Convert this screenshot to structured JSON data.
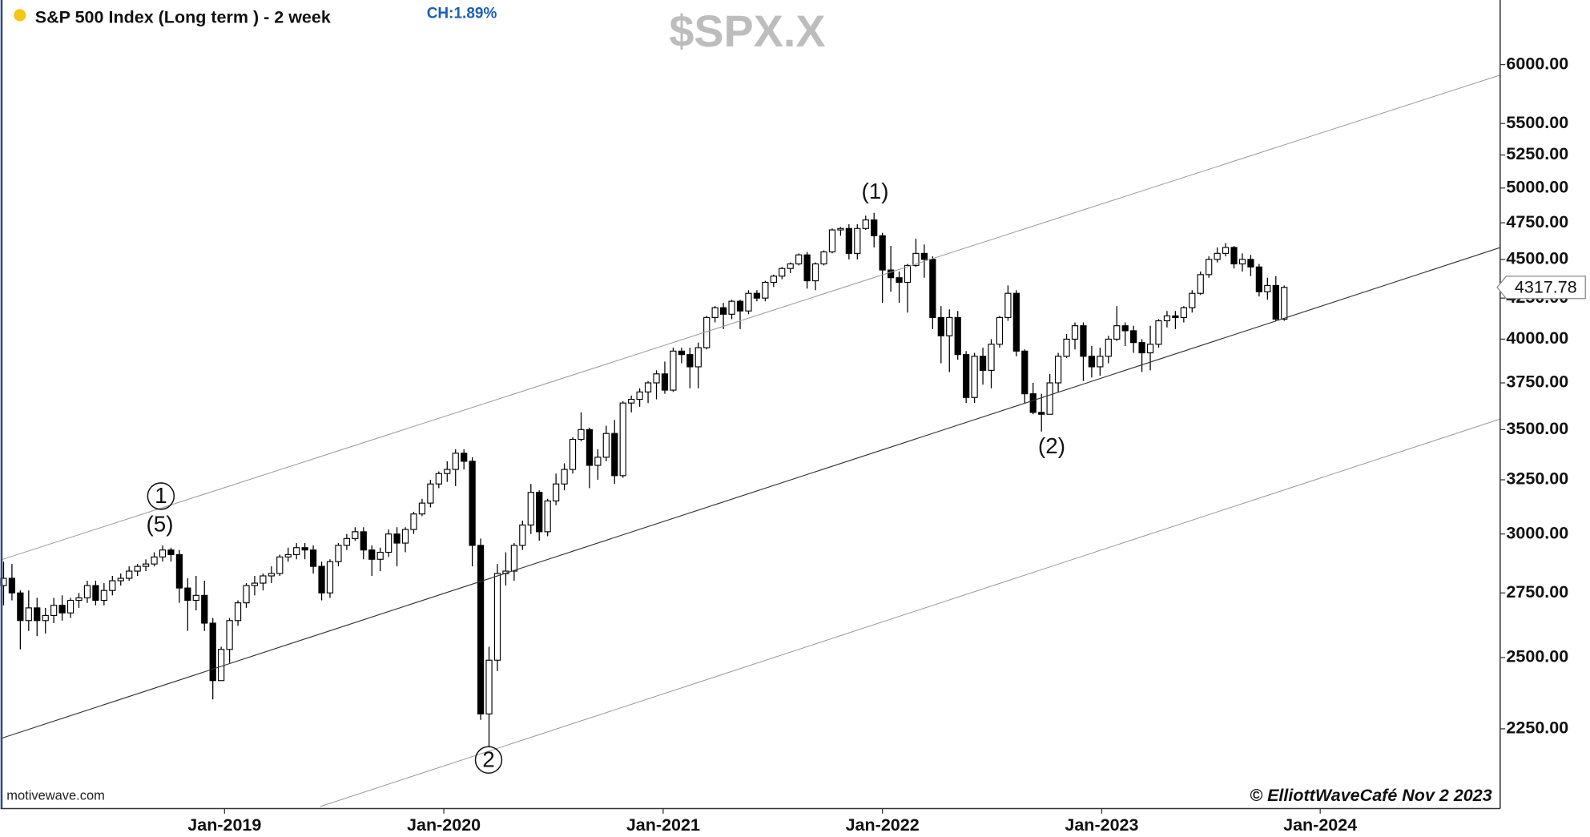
{
  "chart_data": {
    "type": "candlestick",
    "title": "S&P 500 Index (Long term ) - 2 week",
    "change": "CH:1.89%",
    "symbol": "$SPX.X",
    "source": "motivewave.com",
    "copyright": "© ElliottWaveCafé Nov 2 2023",
    "annotations": [
      "1",
      "(5)",
      "(1)",
      "(2)",
      "2"
    ],
    "open": [
      2780,
      2810,
      2750,
      2640,
      2690,
      2640,
      2660,
      2700,
      2670,
      2720,
      2730,
      2780,
      2720,
      2760,
      2800,
      2810,
      2840,
      2860,
      2870,
      2900,
      2930,
      2910,
      2770,
      2720,
      2740,
      2630,
      2416,
      2530,
      2640,
      2710,
      2780,
      2790,
      2820,
      2830,
      2900,
      2910,
      2940,
      2930,
      2860,
      2750,
      2880,
      2950,
      2980,
      3010,
      2930,
      2890,
      2920,
      3000,
      2960,
      3020,
      3090,
      3140,
      3230,
      3280,
      3300,
      3380,
      3340,
      2950,
      2300,
      2490,
      2830,
      2840,
      2950,
      3040,
      3190,
      3010,
      3150,
      3230,
      3300,
      3450,
      3500,
      3320,
      3360,
      3480,
      3270,
      3640,
      3660,
      3700,
      3750,
      3800,
      3710,
      3930,
      3910,
      3840,
      3950,
      4130,
      4190,
      4150,
      4230,
      4170,
      4280,
      4250,
      4350,
      4390,
      4440,
      4470,
      4530,
      4360,
      4470,
      4550,
      4700,
      4710,
      4540,
      4710,
      4770,
      4660,
      4430,
      4380,
      4350,
      4460,
      4540,
      4500,
      4130,
      4020,
      4130,
      3910,
      3670,
      3900,
      3820,
      3970,
      4130,
      4280,
      3930,
      3690,
      3590,
      3580,
      3750,
      3900,
      4000,
      4080,
      3900,
      3840,
      3900,
      4000,
      4080,
      4050,
      3980,
      3920,
      3970,
      4110,
      4140,
      4130,
      4190,
      4280,
      4400,
      4500,
      4540,
      4580,
      4470,
      4500,
      4450,
      4290,
      4330,
      4120
    ],
    "high": [
      2880,
      2870,
      2760,
      2760,
      2730,
      2690,
      2730,
      2740,
      2730,
      2750,
      2800,
      2800,
      2790,
      2820,
      2830,
      2860,
      2870,
      2890,
      2920,
      2950,
      2940,
      2930,
      2810,
      2820,
      2800,
      2650,
      2540,
      2650,
      2720,
      2790,
      2820,
      2830,
      2860,
      2910,
      2940,
      2960,
      2960,
      2950,
      2880,
      2890,
      2960,
      3000,
      3030,
      3030,
      2950,
      2940,
      3020,
      3030,
      3030,
      3100,
      3160,
      3250,
      3290,
      3340,
      3400,
      3400,
      3360,
      2980,
      2540,
      2870,
      2920,
      2960,
      3060,
      3230,
      3200,
      3160,
      3280,
      3330,
      3460,
      3590,
      3510,
      3400,
      3520,
      3550,
      3650,
      3680,
      3720,
      3760,
      3820,
      3870,
      3950,
      3950,
      3950,
      3980,
      4140,
      4200,
      4220,
      4240,
      4240,
      4300,
      4300,
      4360,
      4400,
      4450,
      4480,
      4540,
      4550,
      4480,
      4560,
      4710,
      4720,
      4740,
      4740,
      4800,
      4820,
      4680,
      4590,
      4420,
      4470,
      4640,
      4600,
      4520,
      4200,
      4180,
      4170,
      3930,
      3920,
      3950,
      4000,
      4140,
      4330,
      4300,
      3940,
      3750,
      3690,
      3800,
      3920,
      4030,
      4100,
      4100,
      3960,
      3950,
      4020,
      4200,
      4100,
      4080,
      4000,
      4080,
      4120,
      4170,
      4170,
      4200,
      4300,
      4420,
      4520,
      4580,
      4610,
      4590,
      4540,
      4530,
      4470,
      4380,
      4390,
      4330
    ],
    "low": [
      2700,
      2720,
      2530,
      2600,
      2580,
      2590,
      2630,
      2640,
      2650,
      2690,
      2710,
      2700,
      2700,
      2740,
      2780,
      2800,
      2820,
      2840,
      2860,
      2880,
      2880,
      2710,
      2600,
      2680,
      2600,
      2350,
      2440,
      2480,
      2620,
      2690,
      2740,
      2760,
      2790,
      2820,
      2880,
      2890,
      2890,
      2830,
      2720,
      2730,
      2860,
      2930,
      2970,
      2890,
      2820,
      2840,
      2900,
      2860,
      2920,
      3000,
      3080,
      3120,
      3210,
      3240,
      3220,
      3300,
      2860,
      2280,
      2190,
      2450,
      2780,
      2800,
      2930,
      3000,
      2970,
      2990,
      3130,
      3200,
      3280,
      3440,
      3210,
      3250,
      3340,
      3230,
      3260,
      3590,
      3620,
      3640,
      3660,
      3690,
      3700,
      3860,
      3720,
      3720,
      3940,
      4100,
      4060,
      4120,
      4060,
      4150,
      4230,
      4230,
      4320,
      4370,
      4410,
      4460,
      4310,
      4300,
      4460,
      4540,
      4660,
      4500,
      4500,
      4700,
      4580,
      4220,
      4290,
      4220,
      4160,
      4450,
      4380,
      4060,
      3860,
      3810,
      3880,
      3640,
      3640,
      3740,
      3720,
      3950,
      4110,
      3900,
      3640,
      3580,
      3490,
      3600,
      3700,
      3890,
      3940,
      3760,
      3780,
      3790,
      3860,
      3990,
      3960,
      3920,
      3810,
      3820,
      3950,
      4070,
      4060,
      4100,
      4160,
      4270,
      4380,
      4480,
      4520,
      4440,
      4420,
      4390,
      4260,
      4240,
      4110,
      4110
    ],
    "close": [
      2810,
      2750,
      2640,
      2690,
      2640,
      2660,
      2700,
      2670,
      2720,
      2730,
      2780,
      2720,
      2760,
      2800,
      2810,
      2840,
      2860,
      2870,
      2900,
      2930,
      2910,
      2770,
      2720,
      2740,
      2630,
      2416,
      2530,
      2640,
      2710,
      2780,
      2790,
      2820,
      2830,
      2900,
      2910,
      2940,
      2930,
      2860,
      2750,
      2880,
      2950,
      2980,
      3010,
      2930,
      2890,
      2920,
      3000,
      2960,
      3020,
      3090,
      3140,
      3230,
      3280,
      3300,
      3380,
      3340,
      2950,
      2300,
      2490,
      2830,
      2840,
      2950,
      3040,
      3190,
      3010,
      3150,
      3230,
      3300,
      3450,
      3500,
      3320,
      3360,
      3480,
      3270,
      3640,
      3660,
      3700,
      3750,
      3800,
      3710,
      3930,
      3910,
      3840,
      3950,
      4130,
      4190,
      4150,
      4230,
      4170,
      4280,
      4250,
      4350,
      4390,
      4440,
      4470,
      4530,
      4360,
      4470,
      4550,
      4700,
      4710,
      4540,
      4710,
      4770,
      4660,
      4430,
      4380,
      4350,
      4460,
      4540,
      4500,
      4130,
      4020,
      4130,
      3910,
      3670,
      3900,
      3820,
      3970,
      4130,
      4280,
      3930,
      3690,
      3590,
      3580,
      3750,
      3900,
      4000,
      4080,
      3900,
      3840,
      3900,
      4000,
      4080,
      4050,
      3980,
      3920,
      3970,
      4110,
      4140,
      4130,
      4190,
      4280,
      4400,
      4500,
      4540,
      4580,
      4470,
      4500,
      4450,
      4290,
      4330,
      4120,
      4317.78
    ],
    "up_color": "#ffffff",
    "down_color": "#000000",
    "log_scale": true,
    "xlim": [
      -0.36,
      178.8
    ],
    "xticks": [
      {
        "value": 26.4,
        "label": "Jan-2019"
      },
      {
        "value": 52.6,
        "label": "Jan-2020"
      },
      {
        "value": 78.8,
        "label": "Jan-2021"
      },
      {
        "value": 105.0,
        "label": "Jan-2022"
      },
      {
        "value": 131.2,
        "label": "Jan-2023"
      },
      {
        "value": 157.3,
        "label": "Jan-2024"
      }
    ],
    "ylim": [
      2000,
      6600
    ],
    "yticks": [
      {
        "value": 2250,
        "label": "2250.00"
      },
      {
        "value": 2500,
        "label": "2500.00"
      },
      {
        "value": 2750,
        "label": "2750.00"
      },
      {
        "value": 3000,
        "label": "3000.00"
      },
      {
        "value": 3250,
        "label": "3250.00"
      },
      {
        "value": 3500,
        "label": "3500.00"
      },
      {
        "value": 3750,
        "label": "3750.00"
      },
      {
        "value": 4000,
        "label": "4000.00"
      },
      {
        "value": 4250,
        "label": "4250.00"
      },
      {
        "value": 4500,
        "label": "4500.00"
      },
      {
        "value": 4750,
        "label": "4750.00"
      },
      {
        "value": 5000,
        "label": "5000.00"
      },
      {
        "value": 5250,
        "label": "5250.00"
      },
      {
        "value": 5500,
        "label": "5500.00"
      },
      {
        "value": 6000,
        "label": "6000.00"
      }
    ]
  }
}
